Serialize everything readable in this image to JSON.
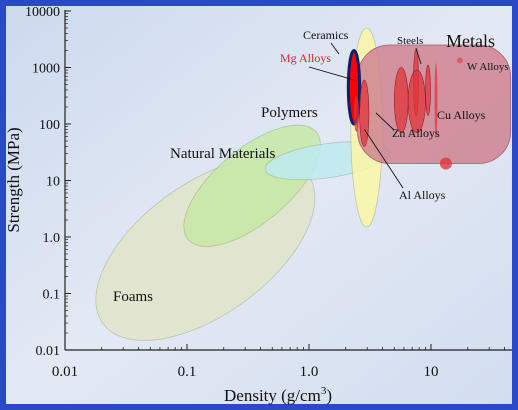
{
  "chart_data": {
    "type": "scatter",
    "subtype": "material-property-map",
    "x_scale": "log",
    "y_scale": "log",
    "xlabel": "Density (g/cm",
    "xlabel_superscript": "3",
    "xlabel_suffix": ")",
    "ylabel": "Strength (MPa)",
    "xlim": [
      0.01,
      50
    ],
    "ylim": [
      0.01,
      10000
    ],
    "x_ticks": [
      {
        "value": 0.01,
        "label": "0.01"
      },
      {
        "value": 0.1,
        "label": "0.1"
      },
      {
        "value": 1,
        "label": "1.0"
      },
      {
        "value": 10,
        "label": "10"
      }
    ],
    "y_ticks": [
      {
        "value": 10000,
        "label": "10000"
      },
      {
        "value": 1000,
        "label": "1000"
      },
      {
        "value": 100,
        "label": "100"
      },
      {
        "value": 10,
        "label": "10"
      },
      {
        "value": 1,
        "label": "1.0"
      },
      {
        "value": 0.1,
        "label": "0.1"
      },
      {
        "value": 0.01,
        "label": "0.01"
      }
    ],
    "grid": false,
    "colors": {
      "frame": "#2a49c8",
      "plot_bg": "#d8e3f1",
      "foams": "#e1e4c9",
      "natural_materials": "#c5e9a6",
      "polymers": "#bdeaf0",
      "ceramics": "#fbf6a4",
      "metals": "#cf8390",
      "alloys": "#e0333a",
      "mg_alloys": "#ff0000",
      "mg_label": "#d8232a"
    },
    "material_families": [
      {
        "name": "Foams",
        "density_range": [
          0.025,
          0.8
        ],
        "strength_range": [
          0.015,
          25
        ],
        "color": "#e1e4c9"
      },
      {
        "name": "Natural Materials",
        "density_range": [
          0.13,
          0.9
        ],
        "strength_range": [
          0.5,
          130
        ],
        "color": "#c5e9a6"
      },
      {
        "name": "Polymers",
        "density_range": [
          0.9,
          2.2
        ],
        "strength_range": [
          2,
          250
        ],
        "color": "#bdeaf0"
      },
      {
        "name": "Ceramics",
        "density_range": [
          2.2,
          4.0
        ],
        "strength_range": [
          1.5,
          5000
        ],
        "color": "#fbf6a4"
      },
      {
        "name": "Metals",
        "density_range": [
          2.5,
          45
        ],
        "strength_range": [
          20,
          2500
        ],
        "color": "#cf8390"
      }
    ],
    "alloys": [
      {
        "name": "Mg Alloys",
        "density_range": [
          2.1,
          2.6
        ],
        "strength_range": [
          100,
          2000
        ],
        "highlight": true
      },
      {
        "name": "Al Alloys",
        "density_range": [
          2.6,
          3.1
        ],
        "strength_range": [
          40,
          600
        ]
      },
      {
        "name": "Zn Alloys",
        "density_range": [
          5.0,
          6.5
        ],
        "strength_range": [
          70,
          1000
        ]
      },
      {
        "name": "Steels",
        "density_range": [
          7.5,
          9.5
        ],
        "strength_range": [
          120,
          1800
        ]
      },
      {
        "name": "Cu Alloys",
        "density_range": [
          6.5,
          9.0
        ],
        "strength_range": [
          70,
          900
        ]
      },
      {
        "name": "W Alloys",
        "density_range": [
          16,
          20
        ],
        "strength_range": [
          300,
          2000
        ]
      }
    ],
    "labels": {
      "metals": "Metals",
      "ceramics": "Ceramics",
      "polymers": "Polymers",
      "natural_materials": "Natural Materials",
      "foams": "Foams",
      "mg_alloys": "Mg Alloys",
      "steels": "Steels",
      "w_alloys": "W Alloys",
      "cu_alloys": "Cu Alloys",
      "zn_alloys": "Zn Alloys",
      "al_alloys": "Al Alloys"
    }
  }
}
